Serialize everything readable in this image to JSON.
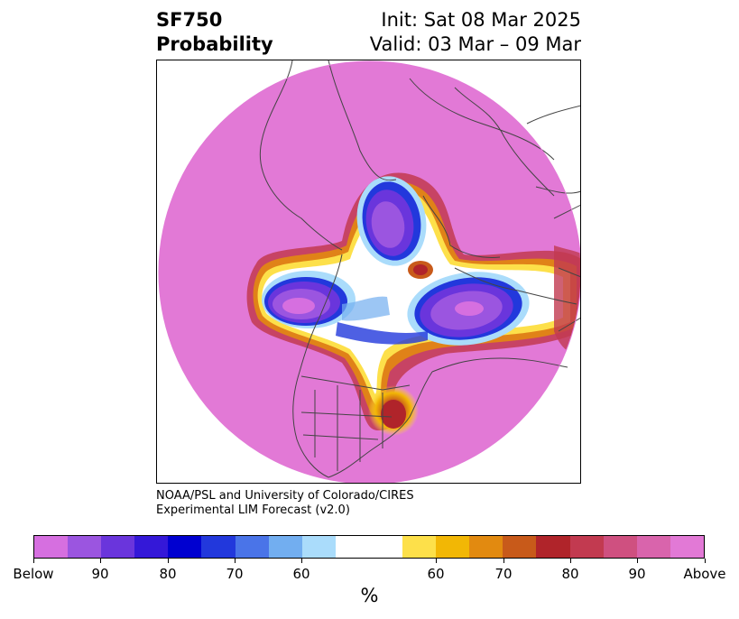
{
  "header": {
    "title_line1": "SF750",
    "title_line2": "Probability",
    "init": "Init: Sat 08 Mar 2025",
    "valid": "Valid: 03 Mar – 09 Mar"
  },
  "credit": {
    "line1": "NOAA/PSL and University of Colorado/CIRES",
    "line2": "Experimental LIM Forecast (v2.0)"
  },
  "colorbar": {
    "unit": "%",
    "colors": [
      "#d66fe0",
      "#9b55e0",
      "#6a35dc",
      "#3418d8",
      "#0000d0",
      "#2238dc",
      "#4a74e8",
      "#72aef0",
      "#aadcfb",
      "#ffffff",
      "#ffffff",
      "#fde04a",
      "#f2b705",
      "#e28a10",
      "#c85a1a",
      "#b0242a",
      "#c23a50",
      "#cf5080",
      "#d964ac",
      "#e279d6"
    ],
    "tick_labels": [
      "Below",
      "90",
      "80",
      "70",
      "60",
      "60",
      "70",
      "80",
      "90",
      "Above"
    ]
  },
  "map": {
    "fill_color": "#e279d6",
    "coast_color": "#444444"
  }
}
